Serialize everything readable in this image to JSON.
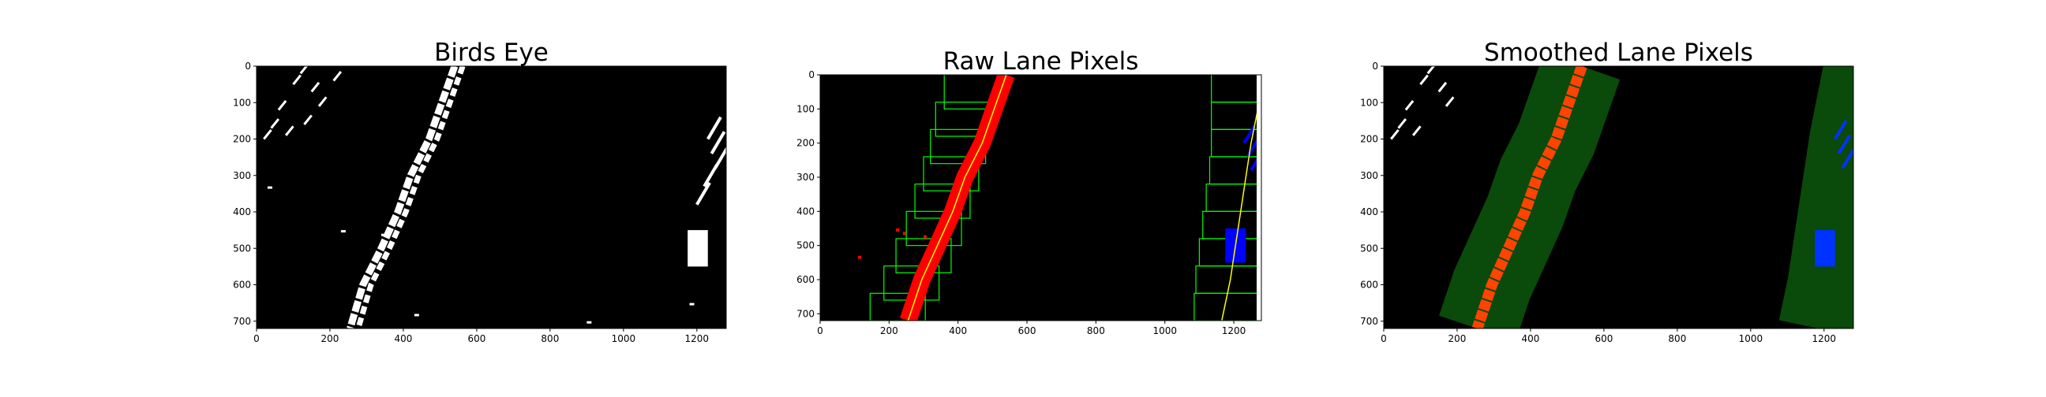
{
  "chart_data": [
    {
      "type": "image",
      "title": "Birds Eye",
      "xlim": [
        0,
        1280
      ],
      "ylim": [
        720,
        0
      ],
      "xticks": [
        0,
        200,
        400,
        600,
        800,
        1000,
        1200
      ],
      "yticks": [
        0,
        100,
        200,
        300,
        400,
        500,
        600,
        700
      ],
      "background": "#000000",
      "lane_color": "#ffffff",
      "left_lane": [
        [
          540,
          0
        ],
        [
          505,
          100
        ],
        [
          470,
          200
        ],
        [
          420,
          300
        ],
        [
          385,
          400
        ],
        [
          340,
          500
        ],
        [
          290,
          600
        ],
        [
          255,
          720
        ]
      ]
    },
    {
      "type": "image",
      "title": "Raw Lane Pixels",
      "xlim": [
        0,
        1280
      ],
      "ylim": [
        720,
        0
      ],
      "xticks": [
        0,
        200,
        400,
        600,
        800,
        1000,
        1200
      ],
      "yticks": [
        0,
        100,
        200,
        300,
        400,
        500,
        600,
        700
      ],
      "background": "#000000",
      "left_pixel_color": "#ff0000",
      "right_pixel_color": "#0000ff",
      "fit_line_color": "#ffff00",
      "window_color": "#00ff00",
      "left_fit": [
        [
          540,
          0
        ],
        [
          505,
          100
        ],
        [
          470,
          200
        ],
        [
          420,
          300
        ],
        [
          385,
          400
        ],
        [
          340,
          500
        ],
        [
          295,
          600
        ],
        [
          255,
          720
        ]
      ],
      "right_fit": [
        [
          1290,
          0
        ],
        [
          1270,
          100
        ],
        [
          1250,
          200
        ],
        [
          1235,
          300
        ],
        [
          1220,
          400
        ],
        [
          1205,
          500
        ],
        [
          1190,
          600
        ],
        [
          1165,
          720
        ]
      ]
    },
    {
      "type": "image",
      "title": "Smoothed Lane Pixels",
      "xlim": [
        0,
        1280
      ],
      "ylim": [
        720,
        0
      ],
      "xticks": [
        0,
        200,
        400,
        600,
        800,
        1000,
        1200
      ],
      "yticks": [
        0,
        100,
        200,
        300,
        400,
        500,
        600,
        700
      ],
      "background": "#000000",
      "band_color": "#0a4a0a",
      "left_pixel_color": "#ff4400",
      "right_pixel_color": "#0033ff",
      "left_center": [
        [
          540,
          0
        ],
        [
          505,
          100
        ],
        [
          470,
          200
        ],
        [
          420,
          300
        ],
        [
          385,
          400
        ],
        [
          340,
          500
        ],
        [
          295,
          600
        ],
        [
          255,
          720
        ]
      ],
      "right_center": [
        [
          1290,
          0
        ],
        [
          1270,
          100
        ],
        [
          1250,
          200
        ],
        [
          1235,
          300
        ],
        [
          1220,
          400
        ],
        [
          1205,
          500
        ],
        [
          1190,
          600
        ],
        [
          1165,
          720
        ]
      ]
    }
  ]
}
